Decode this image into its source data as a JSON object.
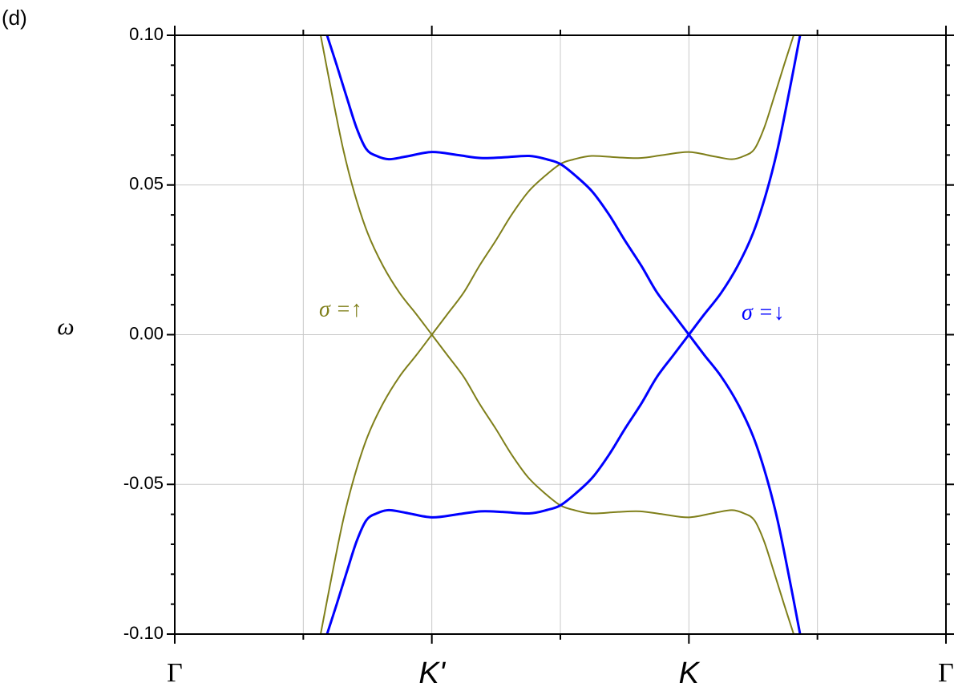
{
  "chart_data": {
    "type": "line",
    "panel_label": "(d)",
    "y_label": "ω",
    "xlim": [
      0,
      6
    ],
    "ylim": [
      -0.1,
      0.1
    ],
    "xticks": [
      {
        "value": 0,
        "label": "Γ"
      },
      {
        "value": 2,
        "label": "K'"
      },
      {
        "value": 4,
        "label": "K"
      },
      {
        "value": 6,
        "label": "Γ"
      }
    ],
    "xminorticks": [
      1,
      3,
      5
    ],
    "yticks": [
      {
        "value": -0.1,
        "label": "-0.10"
      },
      {
        "value": -0.05,
        "label": "-0.05"
      },
      {
        "value": 0,
        "label": "0.00"
      },
      {
        "value": 0.05,
        "label": "0.05"
      },
      {
        "value": 0.1,
        "label": "0.10"
      }
    ],
    "yminorticks": [
      -0.09,
      -0.08,
      -0.07,
      -0.06,
      -0.04,
      -0.03,
      -0.02,
      -0.01,
      0.01,
      0.02,
      0.03,
      0.04,
      0.06,
      0.07,
      0.08,
      0.09
    ],
    "grid": true,
    "series": [
      {
        "color": "#7f7f1a",
        "width": 2,
        "x": [
          1.135,
          1.22,
          1.31,
          1.4,
          1.5,
          1.62,
          1.75,
          1.88,
          2.0,
          2.12,
          2.25,
          2.37,
          2.5,
          2.62,
          2.75,
          2.88,
          3.0,
          3.1,
          3.243,
          3.45,
          3.62,
          3.8,
          4.0,
          4.2,
          4.335,
          4.43,
          4.51,
          4.585,
          4.66,
          4.74,
          4.815
        ],
        "values": [
          0.1,
          0.081,
          0.062,
          0.047,
          0.034,
          0.023,
          0.0139,
          0.0068,
          0,
          -0.0068,
          -0.0142,
          -0.023,
          -0.0316,
          -0.04,
          -0.0477,
          -0.053,
          -0.057,
          -0.0585,
          -0.0597,
          -0.0592,
          -0.059,
          -0.06,
          -0.061,
          -0.0595,
          -0.0586,
          -0.0597,
          -0.062,
          -0.069,
          -0.079,
          -0.09,
          -0.1
        ]
      },
      {
        "color": "#7f7f1a",
        "width": 2,
        "x": [
          1.135,
          1.22,
          1.31,
          1.4,
          1.5,
          1.62,
          1.75,
          1.88,
          2.0,
          2.12,
          2.25,
          2.37,
          2.5,
          2.62,
          2.75,
          2.88,
          3.0,
          3.1,
          3.243,
          3.45,
          3.62,
          3.8,
          4.0,
          4.2,
          4.335,
          4.43,
          4.51,
          4.585,
          4.66,
          4.74,
          4.815
        ],
        "values": [
          -0.1,
          -0.081,
          -0.062,
          -0.047,
          -0.034,
          -0.023,
          -0.0139,
          -0.0068,
          0,
          0.0068,
          0.0142,
          0.023,
          0.0316,
          0.04,
          0.0477,
          0.053,
          0.057,
          0.0585,
          0.0597,
          0.0592,
          0.059,
          0.06,
          0.061,
          0.0595,
          0.0586,
          0.0597,
          0.062,
          0.069,
          0.079,
          0.09,
          0.1
        ]
      },
      {
        "color": "#0000ff",
        "width": 3,
        "x": [
          1.185,
          1.26,
          1.34,
          1.415,
          1.49,
          1.57,
          1.665,
          1.8,
          2.0,
          2.2,
          2.38,
          2.55,
          2.757,
          2.9,
          3.0,
          3.12,
          3.25,
          3.38,
          3.5,
          3.63,
          3.75,
          3.88,
          4.0,
          4.12,
          4.25,
          4.38,
          4.5,
          4.6,
          4.69,
          4.78,
          4.865
        ],
        "values": [
          0.1,
          0.09,
          0.079,
          0.069,
          0.062,
          0.0597,
          0.0586,
          0.0595,
          0.061,
          0.06,
          0.059,
          0.0592,
          0.0597,
          0.0585,
          0.057,
          0.053,
          0.0477,
          0.04,
          0.0316,
          0.023,
          0.0142,
          0.0068,
          0,
          -0.0068,
          -0.0139,
          -0.023,
          -0.034,
          -0.047,
          -0.062,
          -0.081,
          -0.1
        ]
      },
      {
        "color": "#0000ff",
        "width": 3,
        "x": [
          1.185,
          1.26,
          1.34,
          1.415,
          1.49,
          1.57,
          1.665,
          1.8,
          2.0,
          2.2,
          2.38,
          2.55,
          2.757,
          2.9,
          3.0,
          3.12,
          3.25,
          3.38,
          3.5,
          3.63,
          3.75,
          3.88,
          4.0,
          4.12,
          4.25,
          4.38,
          4.5,
          4.6,
          4.69,
          4.78,
          4.865
        ],
        "values": [
          -0.1,
          -0.09,
          -0.079,
          -0.069,
          -0.062,
          -0.0597,
          -0.0586,
          -0.0595,
          -0.061,
          -0.06,
          -0.059,
          -0.0592,
          -0.0597,
          -0.0585,
          -0.057,
          -0.053,
          -0.0477,
          -0.04,
          -0.0316,
          -0.023,
          -0.0142,
          -0.0068,
          0,
          0.0068,
          0.0139,
          0.023,
          0.034,
          0.047,
          0.062,
          0.081,
          0.1
        ]
      }
    ],
    "annotations": [
      {
        "text": "σ =↑",
        "color": "#7f7f1a"
      },
      {
        "text": "σ =↓",
        "color": "#0000ff"
      }
    ]
  }
}
